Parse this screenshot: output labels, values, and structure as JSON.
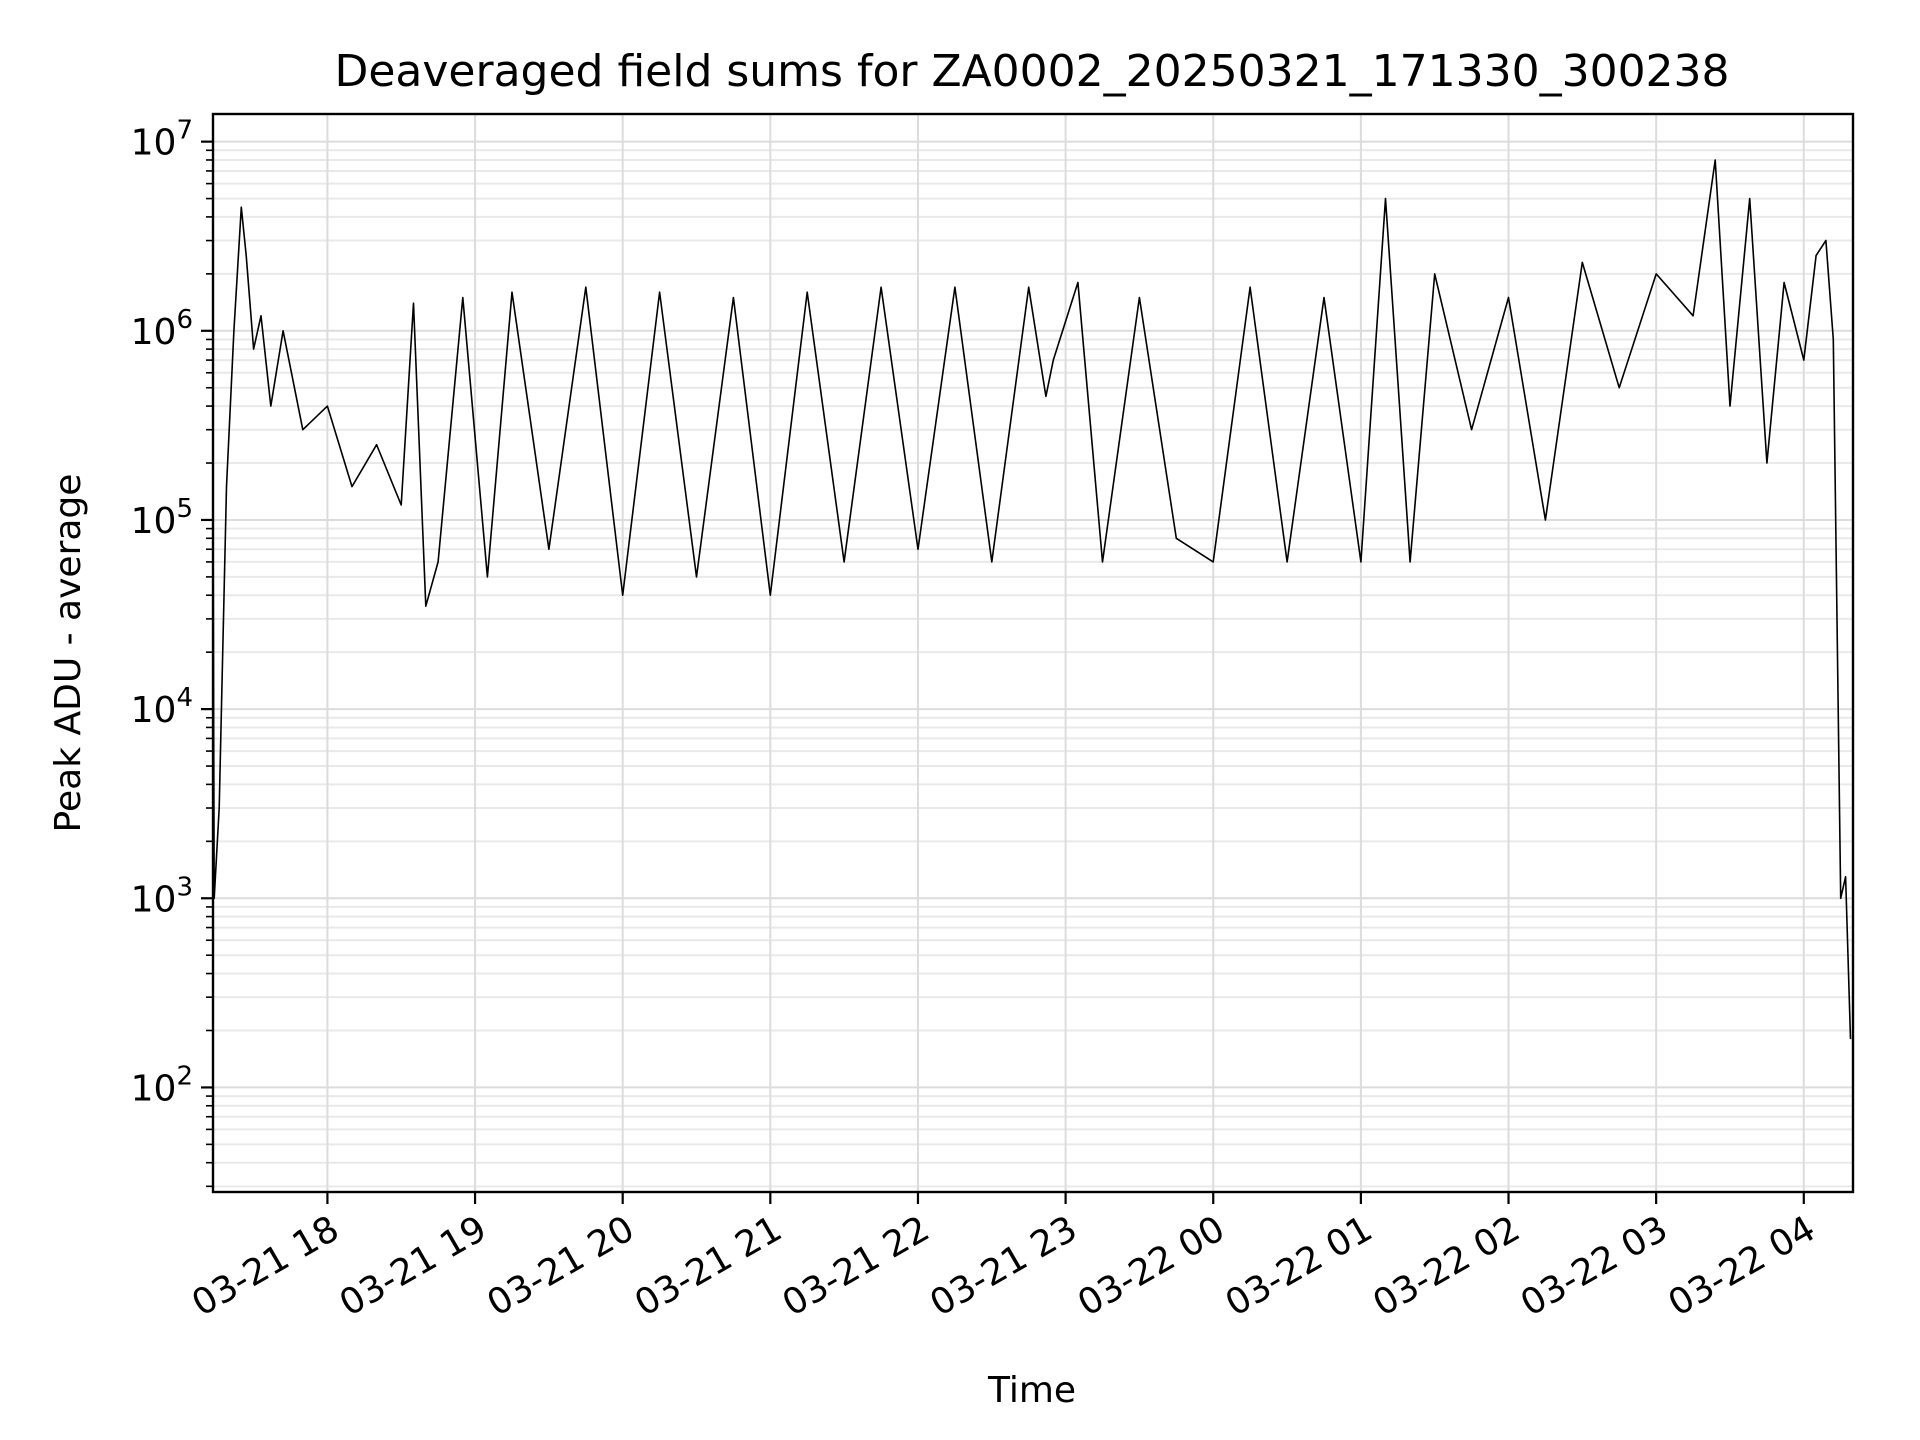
{
  "chart_data": {
    "type": "line",
    "title": "Deaveraged field sums for ZA0002_20250321_171330_300238",
    "xlabel": "Time",
    "ylabel": "Peak ADU - average",
    "yscale": "log",
    "ylim": [
      28,
      14000000
    ],
    "xlim": [
      "2025-03-21 17:13:30",
      "2025-03-22 04:20:00"
    ],
    "grid": "major and minor",
    "line_color": "#000000",
    "x_tick_labels": [
      "03-21 18",
      "03-21 19",
      "03-21 20",
      "03-21 21",
      "03-21 22",
      "03-21 23",
      "03-22 00",
      "03-22 01",
      "03-22 02",
      "03-22 03",
      "03-22 04"
    ],
    "x_tick_values": [
      "2025-03-21 18:00",
      "2025-03-21 19:00",
      "2025-03-21 20:00",
      "2025-03-21 21:00",
      "2025-03-21 22:00",
      "2025-03-21 23:00",
      "2025-03-22 00:00",
      "2025-03-22 01:00",
      "2025-03-22 02:00",
      "2025-03-22 03:00",
      "2025-03-22 04:00"
    ],
    "y_ticks": [
      {
        "value": 100,
        "base": "10",
        "exp": "2"
      },
      {
        "value": 1000,
        "base": "10",
        "exp": "3"
      },
      {
        "value": 10000,
        "base": "10",
        "exp": "4"
      },
      {
        "value": 100000,
        "base": "10",
        "exp": "5"
      },
      {
        "value": 1000000,
        "base": "10",
        "exp": "6"
      },
      {
        "value": 10000000,
        "base": "10",
        "exp": "7"
      }
    ],
    "series": [
      {
        "x": [
          "2025-03-21 17:13:30",
          "2025-03-21 17:14:00",
          "2025-03-21 17:16:00",
          "2025-03-21 17:17:00",
          "2025-03-21 17:19:00",
          "2025-03-21 17:22:00",
          "2025-03-21 17:25:00",
          "2025-03-21 17:27:00",
          "2025-03-21 17:30:00",
          "2025-03-21 17:33:00",
          "2025-03-21 17:37:00",
          "2025-03-21 17:42:00",
          "2025-03-21 17:50:00",
          "2025-03-21 18:00:00",
          "2025-03-21 18:10:00",
          "2025-03-21 18:20:00",
          "2025-03-21 18:30:00",
          "2025-03-21 18:35:00",
          "2025-03-21 18:40:00",
          "2025-03-21 18:45:00",
          "2025-03-21 18:55:00",
          "2025-03-21 19:05:00",
          "2025-03-21 19:15:00",
          "2025-03-21 19:30:00",
          "2025-03-21 19:45:00",
          "2025-03-21 20:00:00",
          "2025-03-21 20:15:00",
          "2025-03-21 20:30:00",
          "2025-03-21 20:45:00",
          "2025-03-21 21:00:00",
          "2025-03-21 21:15:00",
          "2025-03-21 21:30:00",
          "2025-03-21 21:45:00",
          "2025-03-21 22:00:00",
          "2025-03-21 22:15:00",
          "2025-03-21 22:30:00",
          "2025-03-21 22:45:00",
          "2025-03-21 22:52:00",
          "2025-03-21 22:55:00",
          "2025-03-21 23:05:00",
          "2025-03-21 23:15:00",
          "2025-03-21 23:30:00",
          "2025-03-21 23:45:00",
          "2025-03-22 00:00:00",
          "2025-03-22 00:15:00",
          "2025-03-22 00:30:00",
          "2025-03-22 00:45:00",
          "2025-03-22 01:00:00",
          "2025-03-22 01:10:00",
          "2025-03-22 01:20:00",
          "2025-03-22 01:30:00",
          "2025-03-22 01:45:00",
          "2025-03-22 02:00:00",
          "2025-03-22 02:15:00",
          "2025-03-22 02:30:00",
          "2025-03-22 02:45:00",
          "2025-03-22 03:00:00",
          "2025-03-22 03:15:00",
          "2025-03-22 03:24:00",
          "2025-03-22 03:30:00",
          "2025-03-22 03:38:00",
          "2025-03-22 03:45:00",
          "2025-03-22 03:52:00",
          "2025-03-22 04:00:00",
          "2025-03-22 04:05:00",
          "2025-03-22 04:09:00",
          "2025-03-22 04:12:00",
          "2025-03-22 04:15:00",
          "2025-03-22 04:17:00",
          "2025-03-22 04:19:00"
        ],
        "y": [
          140000,
          1000,
          3000,
          11000,
          150000,
          1000000,
          4500000,
          2500000,
          800000,
          1200000,
          400000,
          1000000,
          300000,
          400000,
          150000,
          250000,
          120000,
          1400000,
          35000,
          60000,
          1500000,
          50000,
          1600000,
          70000,
          1700000,
          40000,
          1600000,
          50000,
          1500000,
          40000,
          1600000,
          60000,
          1700000,
          70000,
          1700000,
          60000,
          1700000,
          450000,
          700000,
          1800000,
          60000,
          1500000,
          80000,
          60000,
          1700000,
          60000,
          1500000,
          60000,
          5000000,
          60000,
          2000000,
          300000,
          1500000,
          100000,
          2300000,
          500000,
          2000000,
          1200000,
          8000000,
          400000,
          5000000,
          200000,
          1800000,
          700000,
          2500000,
          3000000,
          900000,
          1000,
          1300,
          180
        ]
      }
    ]
  }
}
